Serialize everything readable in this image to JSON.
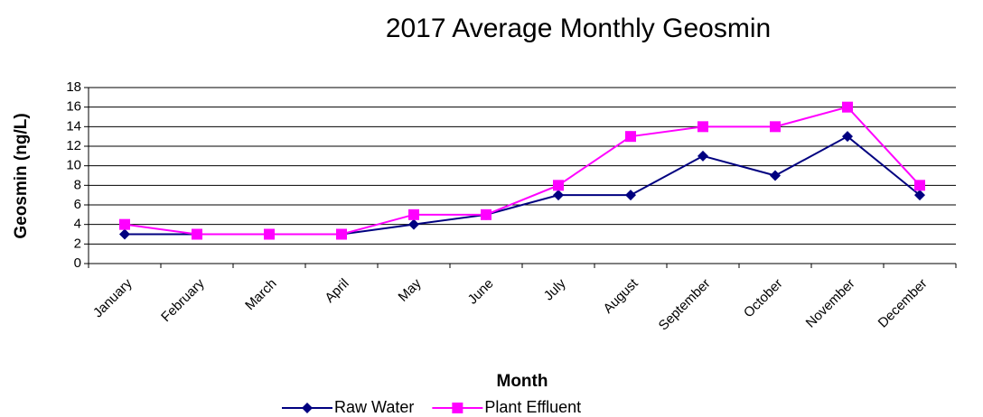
{
  "chart_data": {
    "type": "line",
    "title": "2017 Average Monthly Geosmin",
    "x_label": "Month",
    "y_label": "Geosmin (ng/L)",
    "categories": [
      "January",
      "February",
      "March",
      "April",
      "May",
      "June",
      "July",
      "August",
      "September",
      "October",
      "November",
      "December"
    ],
    "series": [
      {
        "name": "Raw Water",
        "color": "#000080",
        "marker": "diamond",
        "values": [
          3,
          3,
          3,
          3,
          4,
          5,
          7,
          7,
          11,
          9,
          13,
          7
        ]
      },
      {
        "name": "Plant Effluent",
        "color": "#ff00ff",
        "marker": "square",
        "values": [
          4,
          3,
          3,
          3,
          5,
          5,
          8,
          13,
          14,
          14,
          16,
          8
        ]
      }
    ],
    "ylim": [
      0,
      18
    ],
    "yticks": [
      0,
      2,
      4,
      6,
      8,
      10,
      12,
      14,
      16,
      18
    ],
    "grid": true,
    "legend": "bottom"
  }
}
